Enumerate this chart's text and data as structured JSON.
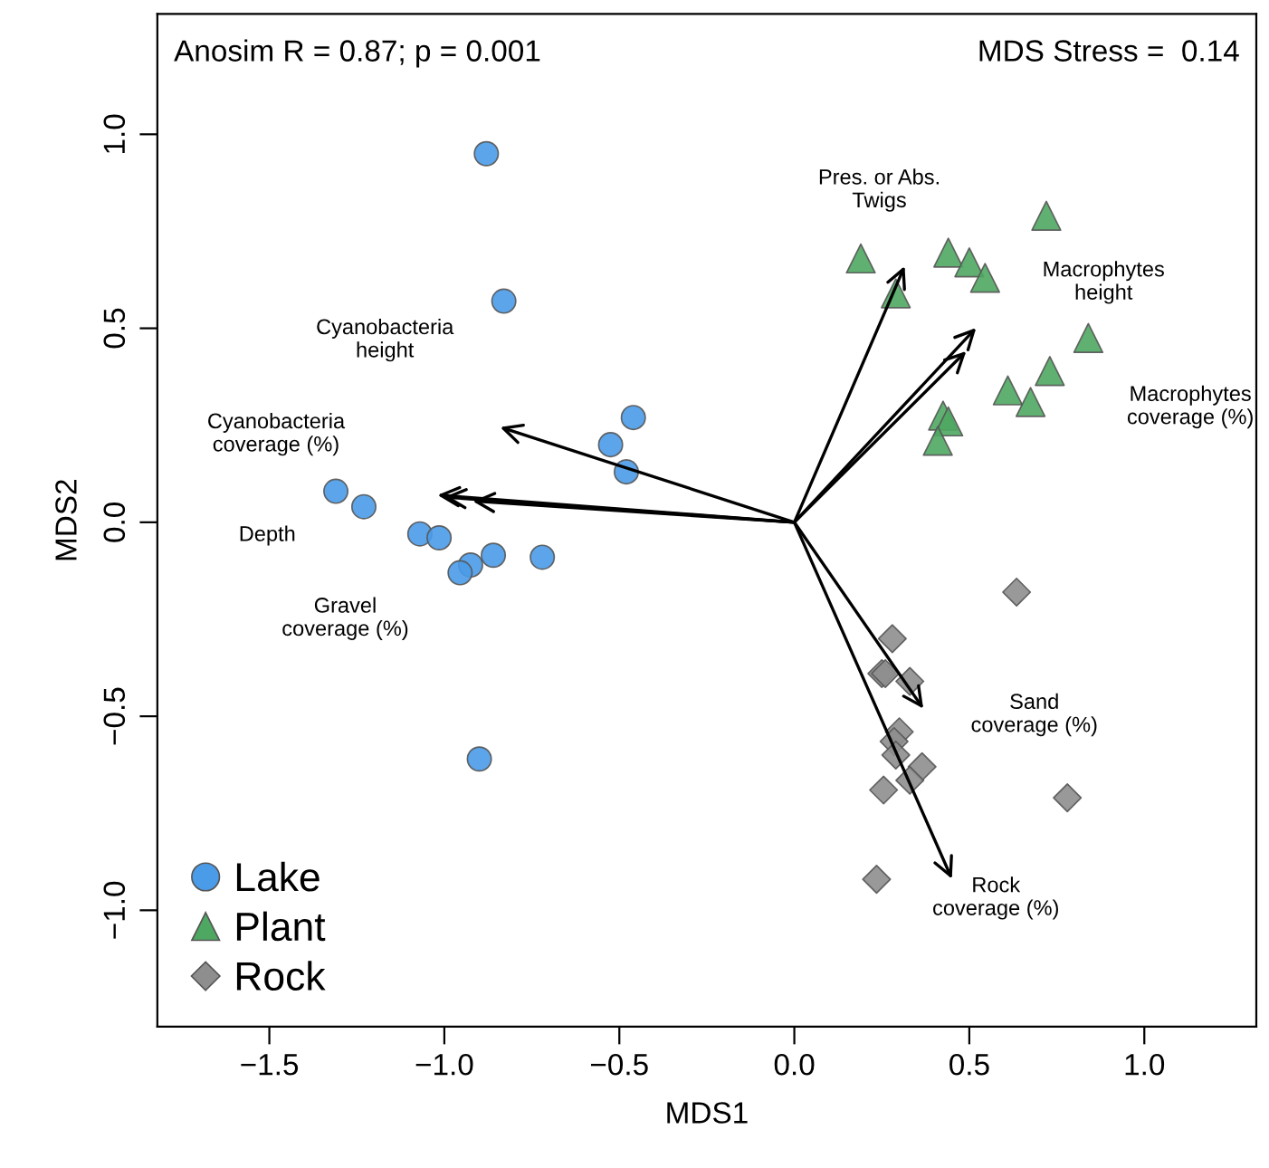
{
  "chart_data": {
    "type": "scatter",
    "xlabel": "MDS1",
    "ylabel": "MDS2",
    "xlim": [
      -1.82,
      1.32
    ],
    "ylim": [
      -1.3,
      1.31
    ],
    "xticks": [
      {
        "value": -1.5,
        "label": "−1.5"
      },
      {
        "value": -1.0,
        "label": "−1.0"
      },
      {
        "value": -0.5,
        "label": "−0.5"
      },
      {
        "value": 0.0,
        "label": "0.0"
      },
      {
        "value": 0.5,
        "label": "0.5"
      },
      {
        "value": 1.0,
        "label": "1.0"
      }
    ],
    "yticks": [
      {
        "value": -1.0,
        "label": "−1.0"
      },
      {
        "value": -0.5,
        "label": "−0.5"
      },
      {
        "value": 0.0,
        "label": "0.0"
      },
      {
        "value": 0.5,
        "label": "0.5"
      },
      {
        "value": 1.0,
        "label": "1.0"
      }
    ],
    "grid": false,
    "legend": "bottom left",
    "series": [
      {
        "name": "Lake",
        "marker": "circle",
        "color": "#4a9be8",
        "x": [
          -0.88,
          -0.83,
          -0.46,
          -0.525,
          -0.48,
          -1.31,
          -1.23,
          -1.07,
          -1.015,
          -0.86,
          -0.72,
          -0.925,
          -0.955,
          -0.9
        ],
        "values": [
          0.95,
          0.57,
          0.27,
          0.2,
          0.13,
          0.08,
          0.04,
          -0.03,
          -0.04,
          -0.085,
          -0.09,
          -0.11,
          -0.13,
          -0.61
        ]
      },
      {
        "name": "Plant",
        "marker": "triangle",
        "color": "#4fa862",
        "x": [
          0.72,
          0.19,
          0.44,
          0.5,
          0.545,
          0.29,
          0.84,
          0.73,
          0.61,
          0.675,
          0.425,
          0.44,
          0.41
        ],
        "values": [
          0.79,
          0.68,
          0.695,
          0.67,
          0.63,
          0.59,
          0.475,
          0.39,
          0.34,
          0.31,
          0.275,
          0.26,
          0.21
        ]
      },
      {
        "name": "Rock",
        "marker": "diamond",
        "color": "#8e8e8e",
        "x": [
          0.635,
          0.28,
          0.25,
          0.26,
          0.33,
          0.3,
          0.285,
          0.29,
          0.365,
          0.33,
          0.255,
          0.78,
          0.235
        ],
        "values": [
          -0.18,
          -0.3,
          -0.39,
          -0.39,
          -0.41,
          -0.54,
          -0.565,
          -0.6,
          -0.63,
          -0.665,
          -0.69,
          -0.71,
          -0.92
        ]
      }
    ],
    "annotations": [
      "Anosim R = 0.87; p = 0.001",
      "MDS Stress =  0.14",
      "Pres. or Abs.\nTwigs",
      "Macrophytes\nheight",
      "Macrophytes\ncoverage (%)",
      "Cyanobacteria\nheight",
      "Cyanobacteria\ncoverage (%)",
      "Depth",
      "Gravel\ncoverage (%)",
      "Sand\ncoverage (%)",
      "Rock\ncoverage (%)"
    ]
  }
}
